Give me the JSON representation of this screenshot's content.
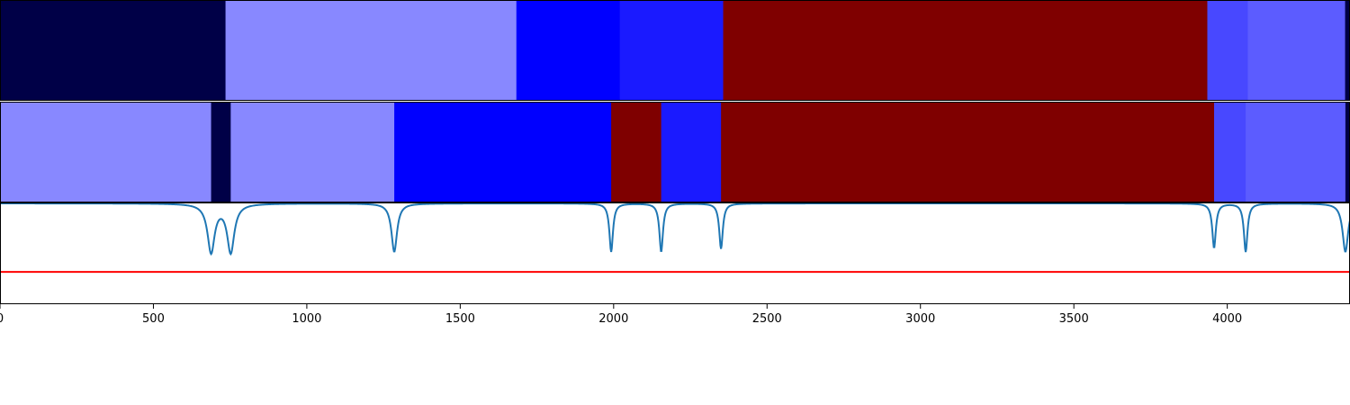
{
  "chart_data": [
    {
      "type": "heatmap",
      "xlim": [
        0,
        4400
      ],
      "segments": [
        {
          "start": 0,
          "end": 735,
          "color": "#000047"
        },
        {
          "start": 735,
          "end": 1683,
          "color": "#8888ff"
        },
        {
          "start": 1683,
          "end": 2020,
          "color": "#0000ff"
        },
        {
          "start": 2020,
          "end": 2357,
          "color": "#1a1aff"
        },
        {
          "start": 2357,
          "end": 3935,
          "color": "#7f0000"
        },
        {
          "start": 3935,
          "end": 4067,
          "color": "#4848ff"
        },
        {
          "start": 4067,
          "end": 4384,
          "color": "#5c5cff"
        },
        {
          "start": 4384,
          "end": 4400,
          "color": "#000047"
        }
      ]
    },
    {
      "type": "heatmap",
      "xlim": [
        0,
        4400
      ],
      "segments": [
        {
          "start": 0,
          "end": 688,
          "color": "#8888ff"
        },
        {
          "start": 688,
          "end": 752,
          "color": "#000047"
        },
        {
          "start": 752,
          "end": 1285,
          "color": "#8888ff"
        },
        {
          "start": 1285,
          "end": 1992,
          "color": "#0000ff"
        },
        {
          "start": 1992,
          "end": 2155,
          "color": "#7f0000"
        },
        {
          "start": 2155,
          "end": 2350,
          "color": "#1a1aff"
        },
        {
          "start": 2350,
          "end": 3957,
          "color": "#7f0000"
        },
        {
          "start": 3957,
          "end": 4060,
          "color": "#4848ff"
        },
        {
          "start": 4060,
          "end": 4385,
          "color": "#5c5cff"
        },
        {
          "start": 4385,
          "end": 4400,
          "color": "#000047"
        }
      ]
    },
    {
      "type": "line",
      "xlim": [
        0,
        4400
      ],
      "ylim": [
        0,
        1
      ],
      "x_ticks": [
        "0",
        "500",
        "1000",
        "1500",
        "2000",
        "2500",
        "3000",
        "3500",
        "4000"
      ],
      "x_tick_values": [
        0,
        500,
        1000,
        1500,
        2000,
        2500,
        3000,
        3500,
        4000
      ],
      "threshold": {
        "y": 0.32,
        "color": "#ff0000"
      },
      "series": [
        {
          "color": "#1f77b4",
          "baseline": 1.0,
          "dips": [
            {
              "x": 688,
              "depth": 0.48,
              "width": 14
            },
            {
              "x": 752,
              "depth": 0.48,
              "width": 14
            },
            {
              "x": 1285,
              "depth": 0.48,
              "width": 11
            },
            {
              "x": 1992,
              "depth": 0.48,
              "width": 7
            },
            {
              "x": 2155,
              "depth": 0.48,
              "width": 7
            },
            {
              "x": 2350,
              "depth": 0.45,
              "width": 7
            },
            {
              "x": 3957,
              "depth": 0.44,
              "width": 7
            },
            {
              "x": 4060,
              "depth": 0.48,
              "width": 7
            },
            {
              "x": 4385,
              "depth": 0.48,
              "width": 11
            }
          ]
        }
      ]
    }
  ]
}
